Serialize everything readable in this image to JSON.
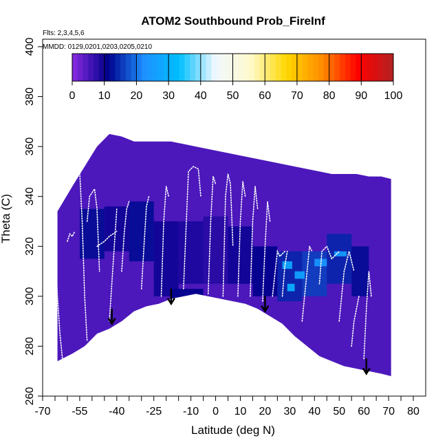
{
  "chart_data": {
    "type": "heatmap",
    "title": "ATOM2 Southbound Prob_FireInf",
    "flights_note": "Flts: 2,3,4,5,6",
    "dates_note": "MMDD: 0129,0201,0203,0205,0210",
    "xlabel": "Latitude (deg N)",
    "ylabel": "Theta (C)",
    "xlim": [
      -70,
      85
    ],
    "ylim": [
      260,
      403
    ],
    "x_ticks": [
      -70,
      -55,
      -40,
      -25,
      -10,
      0,
      10,
      20,
      30,
      40,
      50,
      60,
      70,
      80
    ],
    "x_minor_ticks": [
      -65,
      -60,
      -50,
      -45,
      -35,
      -30,
      -20,
      -15,
      -5,
      5,
      15,
      25,
      35,
      45,
      55,
      65,
      75
    ],
    "y_ticks": [
      260,
      280,
      300,
      320,
      340,
      360,
      380,
      400
    ],
    "colorbar": {
      "min": 0,
      "max": 100,
      "ticks": [
        0,
        10,
        20,
        30,
        40,
        50,
        60,
        70,
        80,
        90,
        100
      ],
      "stops": [
        "#8a2be2",
        "#00008b",
        "#1e90ff",
        "#00bfff",
        "#f0f8ff",
        "#fffacd",
        "#ffd700",
        "#ff8c00",
        "#ff0000",
        "#b22222"
      ]
    },
    "background_value": 5,
    "data_envelope": {
      "latitude": [
        -64,
        -58,
        -53,
        -48,
        -43,
        -38,
        -33,
        -28,
        -23,
        -18,
        -13,
        -8,
        -3,
        2,
        7,
        12,
        17,
        22,
        27,
        32,
        37,
        42,
        47,
        52,
        57,
        62,
        67,
        71
      ],
      "theta_bottom": [
        274,
        277,
        280,
        285,
        287,
        290,
        294,
        296,
        297,
        299,
        300,
        301,
        300,
        299,
        298,
        297,
        295,
        292,
        289,
        284,
        280,
        276,
        274,
        272,
        271,
        270,
        269,
        268
      ],
      "theta_top": [
        334,
        344,
        352,
        360,
        365,
        364,
        362,
        362,
        362,
        362,
        361,
        360,
        359,
        358,
        357,
        356,
        355,
        354,
        353,
        352,
        351,
        350,
        349,
        349,
        349,
        348,
        348,
        347
      ]
    },
    "high_probability_patches": [
      {
        "latitude": [
          -55,
          -45
        ],
        "theta": [
          315,
          335
        ],
        "value": 12
      },
      {
        "latitude": [
          -45,
          -35
        ],
        "theta": [
          318,
          336
        ],
        "value": 10
      },
      {
        "latitude": [
          -35,
          -25
        ],
        "theta": [
          314,
          338
        ],
        "value": 12
      },
      {
        "latitude": [
          -25,
          -15
        ],
        "theta": [
          300,
          330
        ],
        "value": 10
      },
      {
        "latitude": [
          -15,
          -5
        ],
        "theta": [
          305,
          330
        ],
        "value": 9
      },
      {
        "latitude": [
          -5,
          5
        ],
        "theta": [
          305,
          332
        ],
        "value": 8
      },
      {
        "latitude": [
          5,
          15
        ],
        "theta": [
          305,
          328
        ],
        "value": 10
      },
      {
        "latitude": [
          15,
          25
        ],
        "theta": [
          300,
          320
        ],
        "value": 11
      },
      {
        "latitude": [
          25,
          35
        ],
        "theta": [
          298,
          318
        ],
        "value": 14
      },
      {
        "latitude": [
          35,
          45
        ],
        "theta": [
          300,
          318
        ],
        "value": 16
      },
      {
        "latitude": [
          45,
          55
        ],
        "theta": [
          305,
          325
        ],
        "value": 14
      },
      {
        "latitude": [
          55,
          62
        ],
        "theta": [
          300,
          320
        ],
        "value": 12
      },
      {
        "latitude": [
          -18,
          -5
        ],
        "theta": [
          298,
          303
        ],
        "value": 11
      },
      {
        "latitude": [
          27,
          31
        ],
        "theta": [
          311,
          314
        ],
        "value": 28
      },
      {
        "latitude": [
          32,
          36
        ],
        "theta": [
          307,
          310
        ],
        "value": 27
      },
      {
        "latitude": [
          29,
          32
        ],
        "theta": [
          302,
          305
        ],
        "value": 30
      },
      {
        "latitude": [
          48,
          53
        ],
        "theta": [
          316,
          318
        ],
        "value": 26
      },
      {
        "latitude": [
          40,
          45
        ],
        "theta": [
          312,
          315
        ],
        "value": 24
      }
    ],
    "flight_tracks": [
      {
        "latitude": [
          -66,
          -65,
          -64,
          -63,
          -62
        ],
        "theta": [
          330,
          320,
          300,
          285,
          275
        ]
      },
      {
        "latitude": [
          -60,
          -59,
          -58,
          -57
        ],
        "theta": [
          322,
          325,
          324,
          326
        ]
      },
      {
        "latitude": [
          -56,
          -55,
          -54,
          -53,
          -52
        ],
        "theta": [
          366,
          350,
          330,
          300,
          282
        ]
      },
      {
        "latitude": [
          -52,
          -51,
          -49,
          -48,
          -47
        ],
        "theta": [
          330,
          340,
          343,
          335,
          310
        ]
      },
      {
        "latitude": [
          -48,
          -45,
          -43,
          -40
        ],
        "theta": [
          320,
          322,
          324,
          326
        ]
      },
      {
        "latitude": [
          -43,
          -42,
          -41,
          -40
        ],
        "theta": [
          290,
          305,
          320,
          335
        ]
      },
      {
        "latitude": [
          -38,
          -37,
          -36,
          -35
        ],
        "theta": [
          310,
          325,
          335,
          338
        ]
      },
      {
        "latitude": [
          -30,
          -29,
          -28,
          -27
        ],
        "theta": [
          303,
          320,
          336,
          340
        ]
      },
      {
        "latitude": [
          -22,
          -21,
          -20,
          -19
        ],
        "theta": [
          300,
          330,
          344,
          340
        ]
      },
      {
        "latitude": [
          -13,
          -11,
          -9,
          -7,
          -6
        ],
        "theta": [
          303,
          350,
          352,
          351,
          340
        ]
      },
      {
        "latitude": [
          -3,
          -2,
          -1,
          0
        ],
        "theta": [
          301,
          330,
          348,
          345
        ]
      },
      {
        "latitude": [
          3,
          4,
          5,
          6,
          7
        ],
        "theta": [
          300,
          340,
          349,
          345,
          320
        ]
      },
      {
        "latitude": [
          9,
          10,
          11,
          12
        ],
        "theta": [
          300,
          330,
          346,
          340
        ]
      },
      {
        "latitude": [
          14,
          15,
          16,
          17
        ],
        "theta": [
          300,
          330,
          344,
          335
        ]
      },
      {
        "latitude": [
          19,
          20,
          21,
          22
        ],
        "theta": [
          298,
          320,
          338,
          330
        ]
      },
      {
        "latitude": [
          23,
          25,
          26,
          28
        ],
        "theta": [
          300,
          318,
          316,
          318
        ]
      },
      {
        "latitude": [
          27,
          28,
          29
        ],
        "theta": [
          300,
          312,
          318
        ]
      },
      {
        "latitude": [
          35,
          37,
          38,
          39
        ],
        "theta": [
          290,
          310,
          320,
          318
        ]
      },
      {
        "latitude": [
          42,
          43,
          45,
          47,
          50
        ],
        "theta": [
          305,
          318,
          320,
          315,
          318
        ]
      },
      {
        "latitude": [
          50,
          52,
          54,
          56
        ],
        "theta": [
          290,
          310,
          318,
          310
        ]
      },
      {
        "latitude": [
          60,
          61,
          62,
          63
        ],
        "theta": [
          275,
          295,
          310,
          300
        ]
      },
      {
        "latitude": [
          66,
          67,
          68,
          69
        ],
        "theta": [
          355,
          357,
          356,
          354
        ]
      },
      {
        "latitude": [
          55,
          56,
          58
        ],
        "theta": [
          280,
          290,
          300
        ]
      }
    ],
    "arrows": [
      {
        "latitude": -42,
        "theta": 289
      },
      {
        "latitude": -18,
        "theta": 297
      },
      {
        "latitude": 20,
        "theta": 294
      },
      {
        "latitude": 61,
        "theta": 269
      }
    ],
    "grid": false,
    "legend": "colorbar-top"
  }
}
